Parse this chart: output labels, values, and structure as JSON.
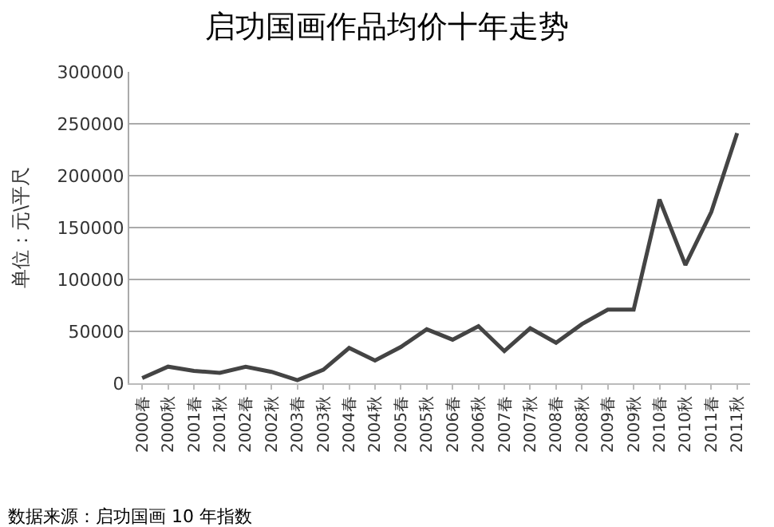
{
  "chart_data": {
    "type": "line",
    "title": "启功国画作品均价十年走势",
    "ylabel": "单位：元\\平尺",
    "categories": [
      "2000春",
      "2000秋",
      "2001春",
      "2001秋",
      "2002春",
      "2002秋",
      "2003春",
      "2003秋",
      "2004春",
      "2004秋",
      "2005春",
      "2005秋",
      "2006春",
      "2006秋",
      "2007春",
      "2007秋",
      "2008春",
      "2008秋",
      "2009春",
      "2009秋",
      "2010春",
      "2010秋",
      "2011春",
      "2011秋"
    ],
    "series": [
      {
        "color": "#444444",
        "values": [
          5000,
          16000,
          12000,
          10000,
          16000,
          11000,
          3000,
          13000,
          34000,
          22000,
          35000,
          52000,
          42000,
          55000,
          31000,
          53000,
          39000,
          57000,
          71000,
          71000,
          177000,
          114000,
          165000,
          241000
        ]
      }
    ],
    "ylim": [
      0,
      300000
    ],
    "yticks": [
      0,
      50000,
      100000,
      150000,
      200000,
      250000,
      300000
    ],
    "grid": "y",
    "legend": false,
    "marker": "none",
    "line_style": "solid",
    "annotations": [
      "数据来源：启功国画 10 年指数"
    ]
  }
}
